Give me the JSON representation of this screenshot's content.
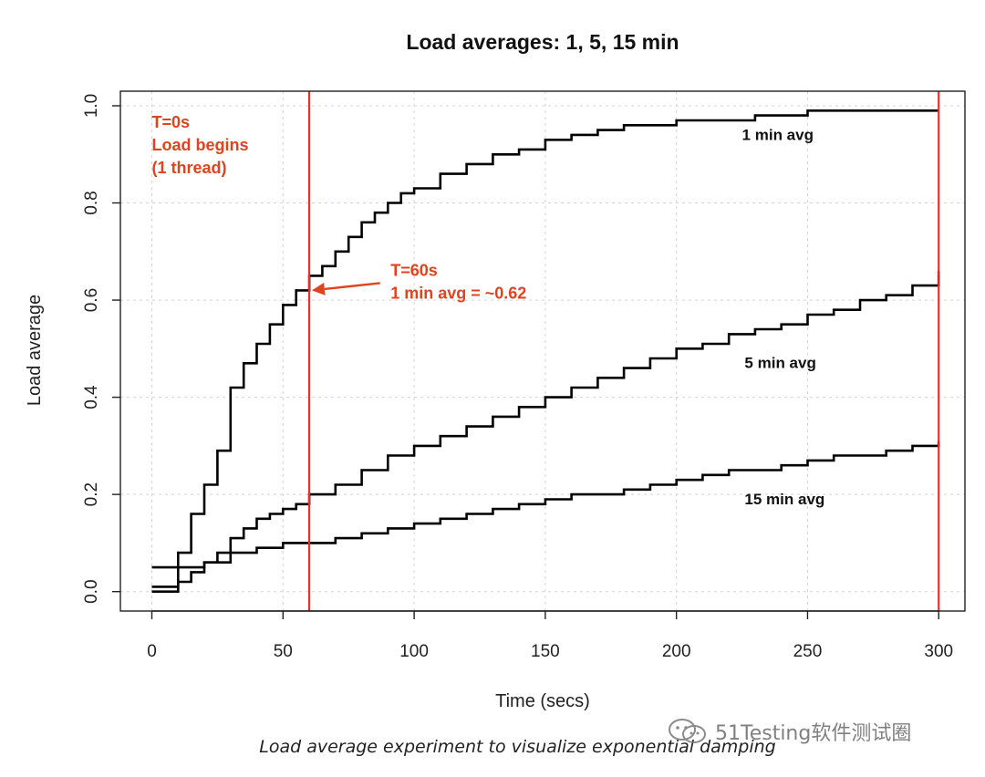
{
  "chart_data": {
    "type": "line",
    "title": "Load averages: 1, 5, 15 min",
    "xlabel": "Time (secs)",
    "ylabel": "Load average",
    "xlim": [
      -12,
      310
    ],
    "ylim": [
      -0.04,
      1.03
    ],
    "x_ticks": [
      0,
      50,
      100,
      150,
      200,
      250,
      300
    ],
    "y_ticks": [
      0.0,
      0.2,
      0.4,
      0.6,
      0.8,
      1.0
    ],
    "x_tick_labels": [
      "0",
      "50",
      "100",
      "150",
      "200",
      "250",
      "300"
    ],
    "y_tick_labels": [
      "0.0",
      "0.2",
      "0.4",
      "0.6",
      "0.8",
      "1.0"
    ],
    "grid": true,
    "series": [
      {
        "name": "1 min avg",
        "color": "#000000",
        "x": [
          0,
          5,
          10,
          15,
          20,
          25,
          30,
          35,
          40,
          45,
          50,
          55,
          60,
          65,
          70,
          75,
          80,
          85,
          90,
          95,
          100,
          110,
          120,
          130,
          140,
          150,
          160,
          170,
          180,
          190,
          200,
          210,
          220,
          230,
          240,
          250,
          260,
          270,
          280,
          290,
          300
        ],
        "values": [
          0.01,
          0.01,
          0.08,
          0.16,
          0.22,
          0.29,
          0.42,
          0.47,
          0.51,
          0.55,
          0.59,
          0.62,
          0.65,
          0.67,
          0.7,
          0.73,
          0.76,
          0.78,
          0.8,
          0.82,
          0.83,
          0.86,
          0.88,
          0.9,
          0.91,
          0.93,
          0.94,
          0.95,
          0.96,
          0.96,
          0.97,
          0.97,
          0.97,
          0.98,
          0.98,
          0.99,
          0.99,
          0.99,
          0.99,
          0.99,
          0.99
        ]
      },
      {
        "name": "5 min avg",
        "color": "#000000",
        "x": [
          0,
          10,
          15,
          20,
          25,
          30,
          35,
          40,
          45,
          50,
          55,
          60,
          70,
          80,
          90,
          100,
          110,
          120,
          130,
          140,
          150,
          160,
          170,
          180,
          190,
          200,
          210,
          220,
          230,
          240,
          250,
          260,
          270,
          280,
          290,
          300
        ],
        "values": [
          0.0,
          0.02,
          0.04,
          0.06,
          0.08,
          0.11,
          0.13,
          0.15,
          0.16,
          0.17,
          0.18,
          0.2,
          0.22,
          0.25,
          0.28,
          0.3,
          0.32,
          0.34,
          0.36,
          0.38,
          0.4,
          0.42,
          0.44,
          0.46,
          0.48,
          0.5,
          0.51,
          0.53,
          0.54,
          0.55,
          0.57,
          0.58,
          0.6,
          0.61,
          0.63,
          0.66
        ]
      },
      {
        "name": "15 min avg",
        "color": "#000000",
        "x": [
          0,
          10,
          20,
          30,
          40,
          50,
          60,
          70,
          80,
          90,
          100,
          110,
          120,
          130,
          140,
          150,
          160,
          170,
          180,
          190,
          200,
          210,
          220,
          230,
          240,
          250,
          260,
          270,
          280,
          290,
          300
        ],
        "values": [
          0.05,
          0.05,
          0.06,
          0.08,
          0.09,
          0.1,
          0.1,
          0.11,
          0.12,
          0.13,
          0.14,
          0.15,
          0.16,
          0.17,
          0.18,
          0.19,
          0.2,
          0.2,
          0.21,
          0.22,
          0.23,
          0.24,
          0.25,
          0.25,
          0.26,
          0.27,
          0.28,
          0.28,
          0.29,
          0.3,
          0.31
        ]
      }
    ],
    "vlines": [
      {
        "x": 60,
        "color": "#e8302a"
      },
      {
        "x": 300,
        "color": "#e8302a"
      }
    ],
    "series_labels": [
      {
        "text": "1 min avg",
        "x": 225,
        "y": 0.93
      },
      {
        "text": "5 min avg",
        "x": 226,
        "y": 0.46
      },
      {
        "text": "15 min avg",
        "x": 226,
        "y": 0.18
      }
    ],
    "annotations": [
      {
        "lines": [
          "T=0s",
          "Load begins",
          "(1 thread)"
        ],
        "x": 0,
        "y": 0.955,
        "color": "#e0441e"
      },
      {
        "lines": [
          "T=60s",
          "1 min avg = ~0.62"
        ],
        "x": 91,
        "y": 0.65,
        "color": "#e0441e",
        "arrow": {
          "from_x": 87,
          "from_y": 0.635,
          "to_x": 61,
          "to_y": 0.62
        }
      }
    ]
  },
  "caption": "Load average experiment to visualize exponential damping",
  "watermark": "51Testing软件测试圈"
}
